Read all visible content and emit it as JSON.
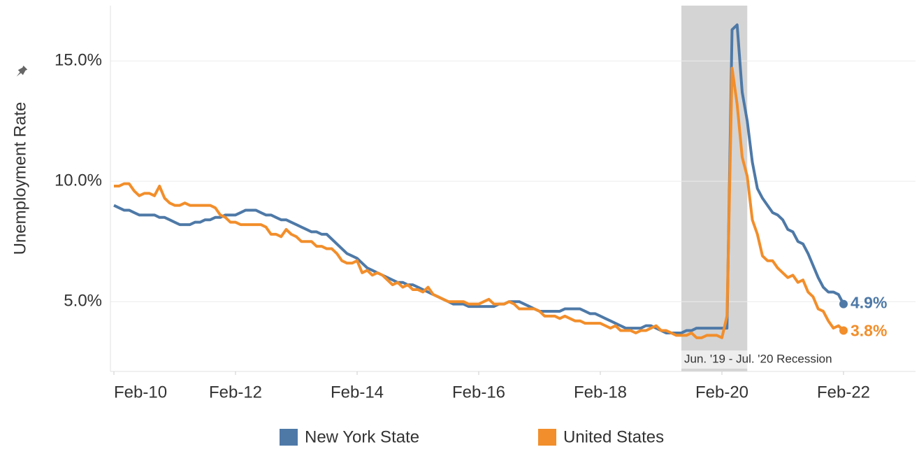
{
  "chart_data": {
    "type": "line",
    "y_label": "Unemployment Rate",
    "x": [
      "Feb-10",
      "Mar-10",
      "Apr-10",
      "May-10",
      "Jun-10",
      "Jul-10",
      "Aug-10",
      "Sep-10",
      "Oct-10",
      "Nov-10",
      "Dec-10",
      "Jan-11",
      "Feb-11",
      "Mar-11",
      "Apr-11",
      "May-11",
      "Jun-11",
      "Jul-11",
      "Aug-11",
      "Sep-11",
      "Oct-11",
      "Nov-11",
      "Dec-11",
      "Jan-12",
      "Feb-12",
      "Mar-12",
      "Apr-12",
      "May-12",
      "Jun-12",
      "Jul-12",
      "Aug-12",
      "Sep-12",
      "Oct-12",
      "Nov-12",
      "Dec-12",
      "Jan-13",
      "Feb-13",
      "Mar-13",
      "Apr-13",
      "May-13",
      "Jun-13",
      "Jul-13",
      "Aug-13",
      "Sep-13",
      "Oct-13",
      "Nov-13",
      "Dec-13",
      "Jan-14",
      "Feb-14",
      "Mar-14",
      "Apr-14",
      "May-14",
      "Jun-14",
      "Jul-14",
      "Aug-14",
      "Sep-14",
      "Oct-14",
      "Nov-14",
      "Dec-14",
      "Jan-15",
      "Feb-15",
      "Mar-15",
      "Apr-15",
      "May-15",
      "Jun-15",
      "Jul-15",
      "Aug-15",
      "Sep-15",
      "Oct-15",
      "Nov-15",
      "Dec-15",
      "Jan-16",
      "Feb-16",
      "Mar-16",
      "Apr-16",
      "May-16",
      "Jun-16",
      "Jul-16",
      "Aug-16",
      "Sep-16",
      "Oct-16",
      "Nov-16",
      "Dec-16",
      "Jan-17",
      "Feb-17",
      "Mar-17",
      "Apr-17",
      "May-17",
      "Jun-17",
      "Jul-17",
      "Aug-17",
      "Sep-17",
      "Oct-17",
      "Nov-17",
      "Dec-17",
      "Jan-18",
      "Feb-18",
      "Mar-18",
      "Apr-18",
      "May-18",
      "Jun-18",
      "Jul-18",
      "Aug-18",
      "Sep-18",
      "Oct-18",
      "Nov-18",
      "Dec-18",
      "Jan-19",
      "Feb-19",
      "Mar-19",
      "Apr-19",
      "May-19",
      "Jun-19",
      "Jul-19",
      "Aug-19",
      "Sep-19",
      "Oct-19",
      "Nov-19",
      "Dec-19",
      "Jan-20",
      "Feb-20",
      "Mar-20",
      "Apr-20",
      "May-20",
      "Jun-20",
      "Jul-20",
      "Aug-20",
      "Sep-20",
      "Oct-20",
      "Nov-20",
      "Dec-20",
      "Jan-21",
      "Feb-21",
      "Mar-21",
      "Apr-21",
      "May-21",
      "Jun-21",
      "Jul-21",
      "Aug-21",
      "Sep-21",
      "Oct-21",
      "Nov-21",
      "Dec-21",
      "Jan-22",
      "Feb-22"
    ],
    "xticks": [
      "Feb-10",
      "Feb-12",
      "Feb-14",
      "Feb-16",
      "Feb-18",
      "Feb-20",
      "Feb-22"
    ],
    "ylim": [
      2.1,
      17.3
    ],
    "yticks": [
      {
        "value": 5,
        "label": "5.0%"
      },
      {
        "value": 10,
        "label": "10.0%"
      },
      {
        "value": 15,
        "label": "15.0%"
      }
    ],
    "grid": true,
    "shade": {
      "from": "Jun-19",
      "to": "Jul-20",
      "label": "Jun. '19 - Jul. '20 Recession"
    },
    "series": [
      {
        "name": "New York State",
        "color": "#4e79a7",
        "end_label": "4.9%",
        "values": [
          9.0,
          8.9,
          8.8,
          8.8,
          8.7,
          8.6,
          8.6,
          8.6,
          8.6,
          8.5,
          8.5,
          8.4,
          8.3,
          8.2,
          8.2,
          8.2,
          8.3,
          8.3,
          8.4,
          8.4,
          8.5,
          8.5,
          8.6,
          8.6,
          8.6,
          8.7,
          8.8,
          8.8,
          8.8,
          8.7,
          8.6,
          8.6,
          8.5,
          8.4,
          8.4,
          8.3,
          8.2,
          8.1,
          8.0,
          7.9,
          7.9,
          7.8,
          7.8,
          7.6,
          7.4,
          7.2,
          7.0,
          6.9,
          6.8,
          6.6,
          6.4,
          6.3,
          6.2,
          6.1,
          6.0,
          5.9,
          5.8,
          5.8,
          5.7,
          5.7,
          5.6,
          5.5,
          5.4,
          5.3,
          5.2,
          5.1,
          5.0,
          4.9,
          4.9,
          4.9,
          4.8,
          4.8,
          4.8,
          4.8,
          4.8,
          4.8,
          4.9,
          4.9,
          5.0,
          5.0,
          5.0,
          4.9,
          4.8,
          4.7,
          4.6,
          4.6,
          4.6,
          4.6,
          4.6,
          4.7,
          4.7,
          4.7,
          4.7,
          4.6,
          4.5,
          4.5,
          4.4,
          4.3,
          4.2,
          4.1,
          4.0,
          3.9,
          3.9,
          3.9,
          3.9,
          4.0,
          4.0,
          3.9,
          3.8,
          3.7,
          3.7,
          3.7,
          3.7,
          3.8,
          3.8,
          3.9,
          3.9,
          3.9,
          3.9,
          3.9,
          3.9,
          3.9,
          16.3,
          16.5,
          13.7,
          12.5,
          10.8,
          9.7,
          9.3,
          9.0,
          8.7,
          8.6,
          8.4,
          8.0,
          7.9,
          7.5,
          7.4,
          7.0,
          6.5,
          6.0,
          5.6,
          5.4,
          5.4,
          5.3,
          4.9
        ]
      },
      {
        "name": "United States",
        "color": "#f28e2b",
        "end_label": "3.8%",
        "values": [
          9.8,
          9.8,
          9.9,
          9.9,
          9.6,
          9.4,
          9.5,
          9.5,
          9.4,
          9.8,
          9.3,
          9.1,
          9.0,
          9.0,
          9.1,
          9.0,
          9.0,
          9.0,
          9.0,
          9.0,
          8.9,
          8.6,
          8.5,
          8.3,
          8.3,
          8.2,
          8.2,
          8.2,
          8.2,
          8.2,
          8.1,
          7.8,
          7.8,
          7.7,
          8.0,
          7.8,
          7.7,
          7.5,
          7.5,
          7.5,
          7.3,
          7.3,
          7.2,
          7.2,
          7.0,
          6.7,
          6.6,
          6.6,
          6.7,
          6.2,
          6.3,
          6.1,
          6.2,
          6.1,
          5.9,
          5.7,
          5.8,
          5.6,
          5.7,
          5.5,
          5.5,
          5.4,
          5.6,
          5.3,
          5.2,
          5.1,
          5.0,
          5.0,
          5.0,
          5.0,
          4.9,
          4.9,
          4.9,
          5.0,
          5.1,
          4.9,
          4.9,
          4.9,
          5.0,
          4.9,
          4.7,
          4.7,
          4.7,
          4.7,
          4.6,
          4.4,
          4.4,
          4.4,
          4.3,
          4.4,
          4.3,
          4.2,
          4.2,
          4.1,
          4.1,
          4.1,
          4.1,
          4.0,
          3.9,
          4.0,
          3.8,
          3.8,
          3.8,
          3.7,
          3.8,
          3.8,
          3.9,
          4.0,
          3.8,
          3.8,
          3.7,
          3.6,
          3.6,
          3.6,
          3.7,
          3.5,
          3.5,
          3.6,
          3.6,
          3.6,
          3.5,
          4.4,
          14.7,
          13.2,
          11.0,
          10.2,
          8.4,
          7.8,
          6.9,
          6.7,
          6.7,
          6.4,
          6.2,
          6.0,
          6.1,
          5.8,
          5.9,
          5.4,
          5.2,
          4.7,
          4.6,
          4.2,
          3.9,
          4.0,
          3.8
        ]
      }
    ]
  }
}
